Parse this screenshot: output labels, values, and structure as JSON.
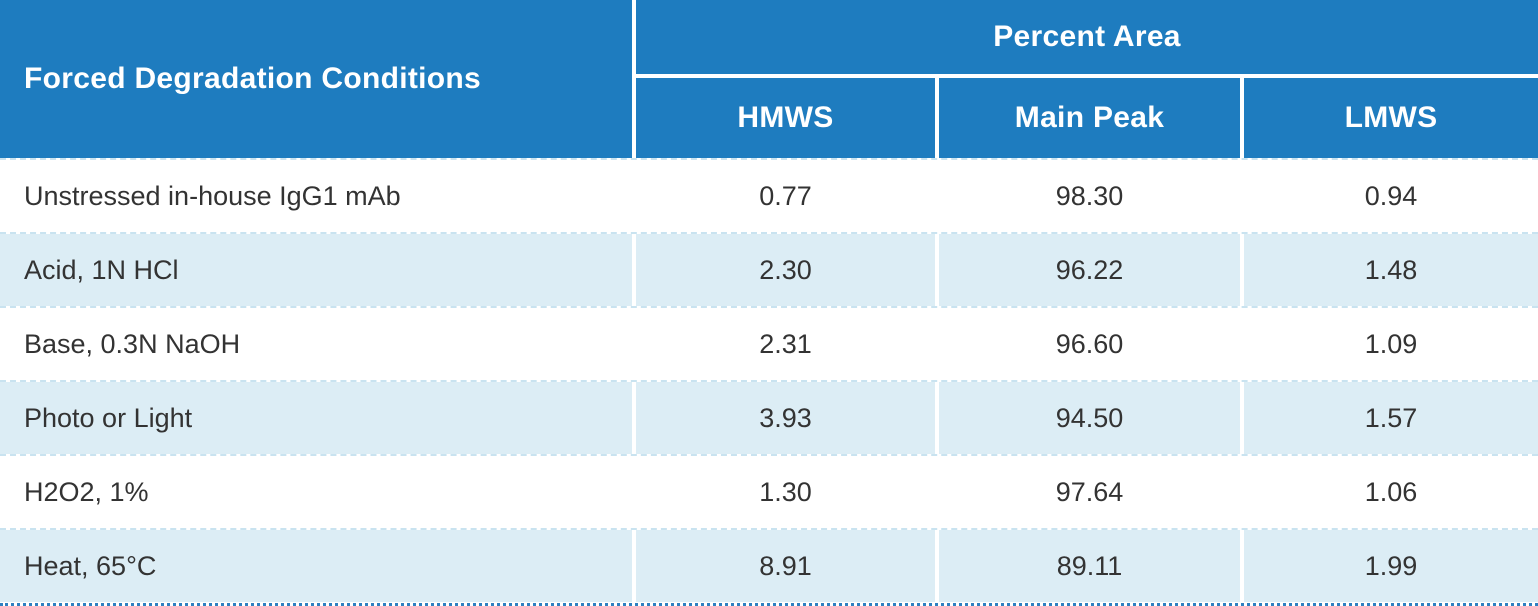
{
  "header": {
    "conditions_label": "Forced Degradation Conditions",
    "group_label": "Percent Area",
    "columns": [
      "HMWS",
      "Main Peak",
      "LMWS"
    ]
  },
  "rows": [
    {
      "condition": "Unstressed in-house IgG1 mAb",
      "values": [
        "0.77",
        "98.30",
        "0.94"
      ]
    },
    {
      "condition": "Acid, 1N HCl",
      "values": [
        "2.30",
        "96.22",
        "1.48"
      ]
    },
    {
      "condition": "Base, 0.3N NaOH",
      "values": [
        "2.31",
        "96.60",
        "1.09"
      ]
    },
    {
      "condition": "Photo or Light",
      "values": [
        "3.93",
        "94.50",
        "1.57"
      ]
    },
    {
      "condition": "H2O2, 1%",
      "values": [
        "1.30",
        "97.64",
        "1.06"
      ]
    },
    {
      "condition": "Heat, 65°C",
      "values": [
        "8.91",
        "89.11",
        "1.99"
      ]
    }
  ],
  "colors": {
    "header_bg": "#1E7CBF",
    "header_text": "#FFFFFF",
    "alt_row_bg": "#DCEDF5",
    "body_text": "#333333",
    "row_separator": "#C9E3F0",
    "bottom_dotted_border": "#2E80C1"
  }
}
